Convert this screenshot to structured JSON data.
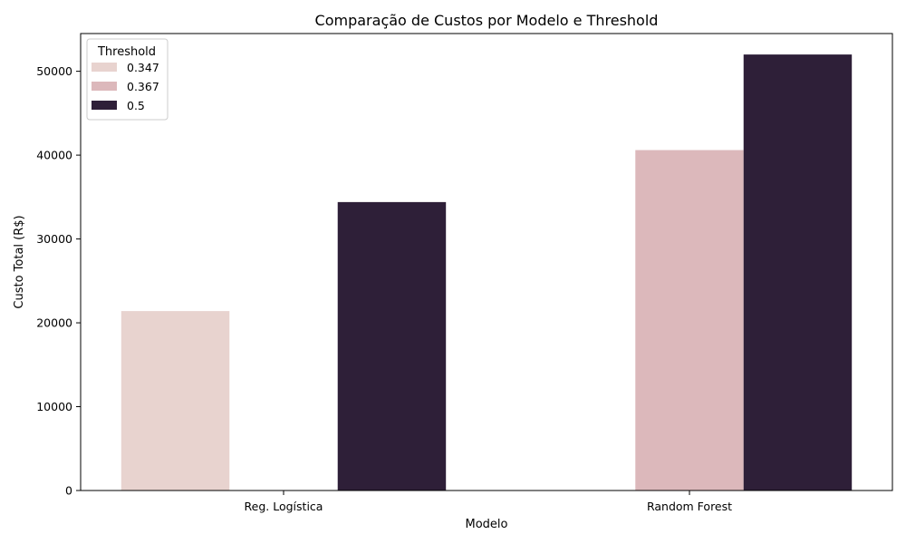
{
  "chart_data": {
    "type": "bar",
    "title": "Comparação de Custos por Modelo e Threshold",
    "xlabel": "Modelo",
    "ylabel": "Custo Total (R$)",
    "categories": [
      "Reg. Logística",
      "Random Forest"
    ],
    "series": [
      {
        "name": "0.347",
        "color": "#e8d3cf",
        "values": [
          21400,
          null
        ]
      },
      {
        "name": "0.367",
        "color": "#dcb8bb",
        "values": [
          null,
          40600
        ]
      },
      {
        "name": "0.5",
        "color": "#2e1f38",
        "values": [
          34400,
          52000
        ]
      }
    ],
    "ylim": [
      0,
      54500
    ],
    "yticks": [
      0,
      10000,
      20000,
      30000,
      40000,
      50000
    ],
    "grid": false,
    "legend": {
      "title": "Threshold",
      "placement": "top-left"
    }
  }
}
